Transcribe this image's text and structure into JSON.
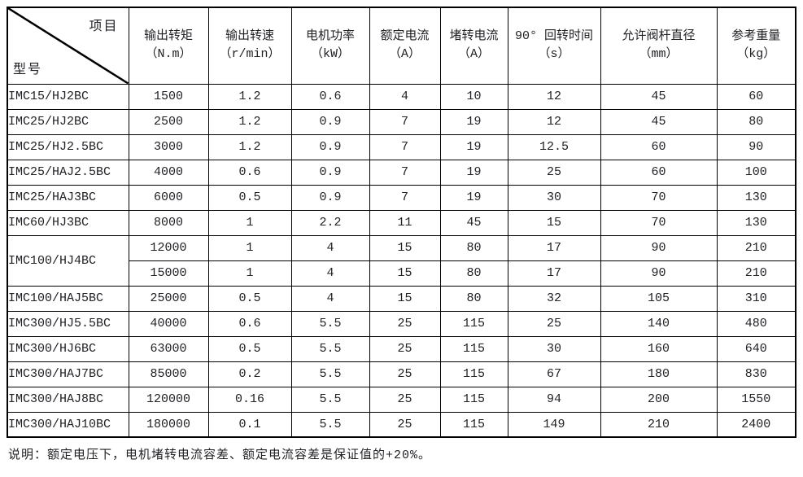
{
  "page": {
    "background": "#ffffff",
    "text_color": "#212126",
    "border_color": "#000000"
  },
  "table": {
    "corner": {
      "top_right": "项目",
      "bottom_left": "型号"
    },
    "columns": [
      {
        "name": "输出转矩",
        "unit": "（N.m）"
      },
      {
        "name": "输出转速",
        "unit": "（r/min）"
      },
      {
        "name": "电机功率",
        "unit": "（kW）"
      },
      {
        "name": "额定电流",
        "unit": "（A）"
      },
      {
        "name": "堵转电流",
        "unit": "（A）"
      },
      {
        "name": "90° 回转时间",
        "unit": "（s）"
      },
      {
        "name": "允许阀杆直径",
        "unit": "（mm）"
      },
      {
        "name": "参考重量",
        "unit": "（kg）"
      }
    ],
    "rows": [
      {
        "model": "IMC15/HJ2BC",
        "rowspan": 1,
        "values": [
          "1500",
          "1.2",
          "0.6",
          "4",
          "10",
          "12",
          "45",
          "60"
        ]
      },
      {
        "model": "IMC25/HJ2BC",
        "rowspan": 1,
        "values": [
          "2500",
          "1.2",
          "0.9",
          "7",
          "19",
          "12",
          "45",
          "80"
        ]
      },
      {
        "model": "IMC25/HJ2.5BC",
        "rowspan": 1,
        "values": [
          "3000",
          "1.2",
          "0.9",
          "7",
          "19",
          "12.5",
          "60",
          "90"
        ]
      },
      {
        "model": "IMC25/HAJ2.5BC",
        "rowspan": 1,
        "values": [
          "4000",
          "0.6",
          "0.9",
          "7",
          "19",
          "25",
          "60",
          "100"
        ]
      },
      {
        "model": "IMC25/HAJ3BC",
        "rowspan": 1,
        "values": [
          "6000",
          "0.5",
          "0.9",
          "7",
          "19",
          "30",
          "70",
          "130"
        ]
      },
      {
        "model": "IMC60/HJ3BC",
        "rowspan": 1,
        "values": [
          "8000",
          "1",
          "2.2",
          "11",
          "45",
          "15",
          "70",
          "130"
        ]
      },
      {
        "model": "IMC100/HJ4BC",
        "rowspan": 2,
        "values": [
          "12000",
          "1",
          "4",
          "15",
          "80",
          "17",
          "90",
          "210"
        ]
      },
      {
        "model": null,
        "values": [
          "15000",
          "1",
          "4",
          "15",
          "80",
          "17",
          "90",
          "210"
        ]
      },
      {
        "model": "IMC100/HAJ5BC",
        "rowspan": 1,
        "values": [
          "25000",
          "0.5",
          "4",
          "15",
          "80",
          "32",
          "105",
          "310"
        ]
      },
      {
        "model": "IMC300/HJ5.5BC",
        "rowspan": 1,
        "values": [
          "40000",
          "0.6",
          "5.5",
          "25",
          "115",
          "25",
          "140",
          "480"
        ]
      },
      {
        "model": "IMC300/HJ6BC",
        "rowspan": 1,
        "values": [
          "63000",
          "0.5",
          "5.5",
          "25",
          "115",
          "30",
          "160",
          "640"
        ]
      },
      {
        "model": "IMC300/HAJ7BC",
        "rowspan": 1,
        "values": [
          "85000",
          "0.2",
          "5.5",
          "25",
          "115",
          "67",
          "180",
          "830"
        ]
      },
      {
        "model": "IMC300/HAJ8BC",
        "rowspan": 1,
        "values": [
          "120000",
          "0.16",
          "5.5",
          "25",
          "115",
          "94",
          "200",
          "1550"
        ]
      },
      {
        "model": "IMC300/HAJ10BC",
        "rowspan": 1,
        "values": [
          "180000",
          "0.1",
          "5.5",
          "25",
          "115",
          "149",
          "210",
          "2400"
        ]
      }
    ]
  },
  "note": "说明：额定电压下，电机堵转电流容差、额定电流容差是保证值的+20%。"
}
